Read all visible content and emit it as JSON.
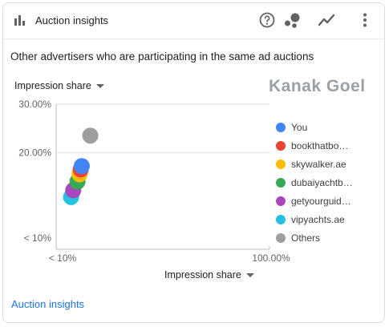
{
  "header": {
    "title": "Auction insights"
  },
  "subtitle": "Other advertisers who are participating in the same ad auctions",
  "watermark": "Kanak Goel",
  "y_dropdown": "Impression share",
  "x_dropdown": "Impression share",
  "footer_link": "Auction insights",
  "legend": [
    {
      "label": "You",
      "color": "#4285f4"
    },
    {
      "label": "bookthatbo…",
      "color": "#ea4335"
    },
    {
      "label": "skywalker.ae",
      "color": "#fbbc04"
    },
    {
      "label": "dubaiyachtb…",
      "color": "#34a853"
    },
    {
      "label": "getyourguid…",
      "color": "#ab47bc"
    },
    {
      "label": "vipyachts.ae",
      "color": "#24c1e0"
    },
    {
      "label": "Others",
      "color": "#9e9e9e"
    }
  ],
  "chart_data": {
    "type": "scatter",
    "x_ticks": [
      "< 10%",
      "100.00%"
    ],
    "y_ticks": [
      "30.00%",
      "20.00%",
      "< 10%"
    ],
    "xlim": [
      0,
      100
    ],
    "ylim": [
      0,
      30
    ],
    "series": [
      {
        "name": "You",
        "x": 12,
        "y": 17.2,
        "color": "#4285f4"
      },
      {
        "name": "bookthatbo…",
        "x": 11.5,
        "y": 16.5,
        "color": "#ea4335"
      },
      {
        "name": "skywalker.ae",
        "x": 11,
        "y": 15.5,
        "color": "#fbbc04"
      },
      {
        "name": "dubaiyachtb…",
        "x": 10,
        "y": 14,
        "color": "#34a853"
      },
      {
        "name": "getyourguid…",
        "x": 8,
        "y": 12.2,
        "color": "#ab47bc"
      },
      {
        "name": "vipyachts.ae",
        "x": 7,
        "y": 10.8,
        "color": "#24c1e0"
      },
      {
        "name": "Others",
        "x": 16,
        "y": 23.5,
        "color": "#9e9e9e"
      }
    ]
  }
}
